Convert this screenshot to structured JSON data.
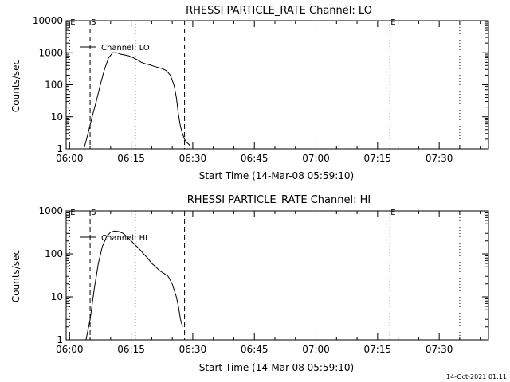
{
  "chart_data": [
    {
      "type": "line",
      "title": "RHESSI PARTICLE_RATE Channel: LO",
      "xlabel": "Start Time (14-Mar-08 05:59:10)",
      "ylabel": "Counts/sec",
      "yscale": "log",
      "ylim": [
        1,
        10000
      ],
      "y_ticks": [
        "1",
        "10",
        "100",
        "1000",
        "10000"
      ],
      "xlim": [
        "05:59:10",
        "07:42:00"
      ],
      "x_ticks": [
        "06:00",
        "06:15",
        "06:30",
        "06:45",
        "07:00",
        "07:15",
        "07:30"
      ],
      "legend": "Channel: LO",
      "legend_position": "top-left",
      "markers": [
        {
          "label": "E",
          "time": "06:00",
          "style": "dotted"
        },
        {
          "label": "S",
          "time": "06:05",
          "style": "dashed"
        },
        {
          "label": "",
          "time": "06:16",
          "style": "dotted"
        },
        {
          "label": "",
          "time": "06:28",
          "style": "dashed"
        },
        {
          "label": "E",
          "time": "07:18",
          "style": "dotted"
        },
        {
          "label": "",
          "time": "07:35",
          "style": "dotted"
        }
      ],
      "series": [
        {
          "name": "Channel: LO",
          "x": [
            "06:03:30",
            "06:04:30",
            "06:05:30",
            "06:06:30",
            "06:07:30",
            "06:08:30",
            "06:09:30",
            "06:10:30",
            "06:11:30",
            "06:12:30",
            "06:13:30",
            "06:14:30",
            "06:15:30",
            "06:16:30",
            "06:17:30",
            "06:18:30",
            "06:19:30",
            "06:20:30",
            "06:21:30",
            "06:22:30",
            "06:23:30",
            "06:24:00",
            "06:24:30",
            "06:25:00",
            "06:25:30",
            "06:26:00",
            "06:26:30",
            "06:27:00",
            "06:27:30",
            "06:28:00",
            "06:28:30",
            "06:29:00",
            "06:29:30"
          ],
          "values": [
            1,
            3,
            10,
            30,
            100,
            300,
            700,
            1000,
            1000,
            900,
            850,
            800,
            700,
            600,
            500,
            450,
            420,
            380,
            350,
            320,
            280,
            240,
            200,
            140,
            90,
            40,
            12,
            5,
            3,
            2,
            1.6,
            1.4,
            1.2
          ]
        }
      ]
    },
    {
      "type": "line",
      "title": "RHESSI PARTICLE_RATE Channel: HI",
      "xlabel": "Start Time (14-Mar-08 05:59:10)",
      "ylabel": "Counts/sec",
      "yscale": "log",
      "ylim": [
        1,
        1000
      ],
      "y_ticks": [
        "1",
        "10",
        "100",
        "1000"
      ],
      "xlim": [
        "05:59:10",
        "07:42:00"
      ],
      "x_ticks": [
        "06:00",
        "06:15",
        "06:30",
        "06:45",
        "07:00",
        "07:15",
        "07:30"
      ],
      "legend": "Channel: HI",
      "legend_position": "top-left",
      "markers": [
        {
          "label": "E",
          "time": "06:00",
          "style": "dotted"
        },
        {
          "label": "S",
          "time": "06:05",
          "style": "dashed"
        },
        {
          "label": "",
          "time": "06:16",
          "style": "dotted"
        },
        {
          "label": "",
          "time": "06:28",
          "style": "dashed"
        },
        {
          "label": "E",
          "time": "07:18",
          "style": "dotted"
        },
        {
          "label": "",
          "time": "07:35",
          "style": "dotted"
        }
      ],
      "series": [
        {
          "name": "Channel: HI",
          "x": [
            "06:04:00",
            "06:05:00",
            "06:06:00",
            "06:07:00",
            "06:08:00",
            "06:09:00",
            "06:10:00",
            "06:11:00",
            "06:12:00",
            "06:13:00",
            "06:14:00",
            "06:15:00",
            "06:16:00",
            "06:17:00",
            "06:18:00",
            "06:19:00",
            "06:20:00",
            "06:21:00",
            "06:22:00",
            "06:23:00",
            "06:24:00",
            "06:25:00",
            "06:26:00",
            "06:26:30",
            "06:27:00",
            "06:27:30"
          ],
          "values": [
            1,
            3,
            15,
            60,
            150,
            250,
            320,
            340,
            330,
            300,
            250,
            200,
            160,
            130,
            100,
            80,
            60,
            50,
            40,
            35,
            30,
            20,
            10,
            6,
            3,
            2
          ]
        }
      ]
    }
  ],
  "footer": {
    "timestamp": "14-Oct-2021 01:11"
  }
}
